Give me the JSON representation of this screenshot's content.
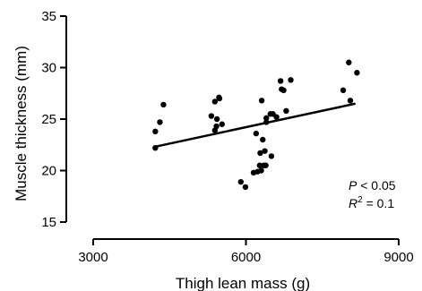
{
  "chart_data": {
    "type": "scatter",
    "xlabel": "Thigh lean mass (g)",
    "ylabel": "Muscle thickness (mm)",
    "xlim": [
      3000,
      9000
    ],
    "ylim": [
      15,
      35
    ],
    "x_ticks": [
      "3000",
      "6000",
      "9000"
    ],
    "y_ticks": [
      "15",
      "20",
      "25",
      "30",
      "35"
    ],
    "grid": false,
    "points": [
      {
        "x": 4220,
        "y": 22.2
      },
      {
        "x": 4220,
        "y": 23.8
      },
      {
        "x": 4310,
        "y": 24.7
      },
      {
        "x": 4380,
        "y": 26.4
      },
      {
        "x": 5320,
        "y": 25.3
      },
      {
        "x": 5390,
        "y": 26.7
      },
      {
        "x": 5390,
        "y": 23.9
      },
      {
        "x": 5420,
        "y": 24.3
      },
      {
        "x": 5430,
        "y": 25.0
      },
      {
        "x": 5470,
        "y": 27.1
      },
      {
        "x": 5480,
        "y": 27.0
      },
      {
        "x": 5530,
        "y": 24.5
      },
      {
        "x": 5900,
        "y": 18.9
      },
      {
        "x": 5990,
        "y": 18.4
      },
      {
        "x": 6150,
        "y": 19.8
      },
      {
        "x": 6200,
        "y": 23.6
      },
      {
        "x": 6230,
        "y": 19.9
      },
      {
        "x": 6270,
        "y": 20.5
      },
      {
        "x": 6280,
        "y": 21.7
      },
      {
        "x": 6300,
        "y": 20.0
      },
      {
        "x": 6310,
        "y": 26.8
      },
      {
        "x": 6330,
        "y": 23.0
      },
      {
        "x": 6350,
        "y": 20.5
      },
      {
        "x": 6370,
        "y": 21.9
      },
      {
        "x": 6390,
        "y": 20.5
      },
      {
        "x": 6400,
        "y": 25.1
      },
      {
        "x": 6400,
        "y": 24.7
      },
      {
        "x": 6480,
        "y": 25.5
      },
      {
        "x": 6500,
        "y": 21.4
      },
      {
        "x": 6530,
        "y": 25.5
      },
      {
        "x": 6600,
        "y": 25.2
      },
      {
        "x": 6680,
        "y": 28.7
      },
      {
        "x": 6700,
        "y": 27.9
      },
      {
        "x": 6740,
        "y": 27.8
      },
      {
        "x": 6790,
        "y": 25.8
      },
      {
        "x": 6880,
        "y": 28.8
      },
      {
        "x": 7910,
        "y": 27.8
      },
      {
        "x": 8020,
        "y": 30.5
      },
      {
        "x": 8050,
        "y": 26.8
      },
      {
        "x": 8180,
        "y": 29.5
      }
    ],
    "regression_line": {
      "x": [
        4200,
        8150
      ],
      "y": [
        22.3,
        26.5
      ]
    },
    "annotations": {
      "p_prefix": "P",
      "p_suffix": " < 0.05",
      "r2_prefix": "R",
      "r2_sup": "2",
      "r2_suffix": " = 0.1"
    },
    "colors": {
      "points": "#000000",
      "line": "#000000",
      "axes": "#000000"
    }
  }
}
